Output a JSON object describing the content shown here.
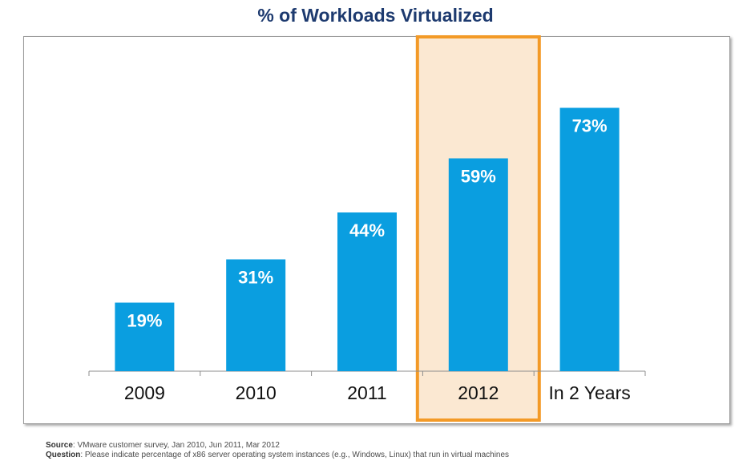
{
  "title": "% of Workloads Virtualized",
  "colors": {
    "bar": "#0a9ee0",
    "highlight_fill": "#fbe8d2",
    "highlight_border": "#f39a27",
    "axis": "#8c8c8c",
    "title": "#1d3a6f"
  },
  "chart_data": {
    "type": "bar",
    "title": "% of Workloads Virtualized",
    "categories": [
      "2009",
      "2010",
      "2011",
      "2012",
      "In 2 Years"
    ],
    "values": [
      19,
      31,
      44,
      59,
      73
    ],
    "data_labels": [
      "19%",
      "31%",
      "44%",
      "59%",
      "73%"
    ],
    "highlighted_category": "2012",
    "ylim": [
      0,
      100
    ],
    "grid": false,
    "legend": "none",
    "xlabel": "",
    "ylabel": ""
  },
  "footer": {
    "source_label": "Source",
    "source_text": ": VMware customer survey, Jan 2010, Jun 2011, Mar 2012",
    "question_label": "Question",
    "question_text": ": Please indicate percentage of x86 server operating system instances (e.g., Windows, Linux) that run in virtual machines"
  }
}
